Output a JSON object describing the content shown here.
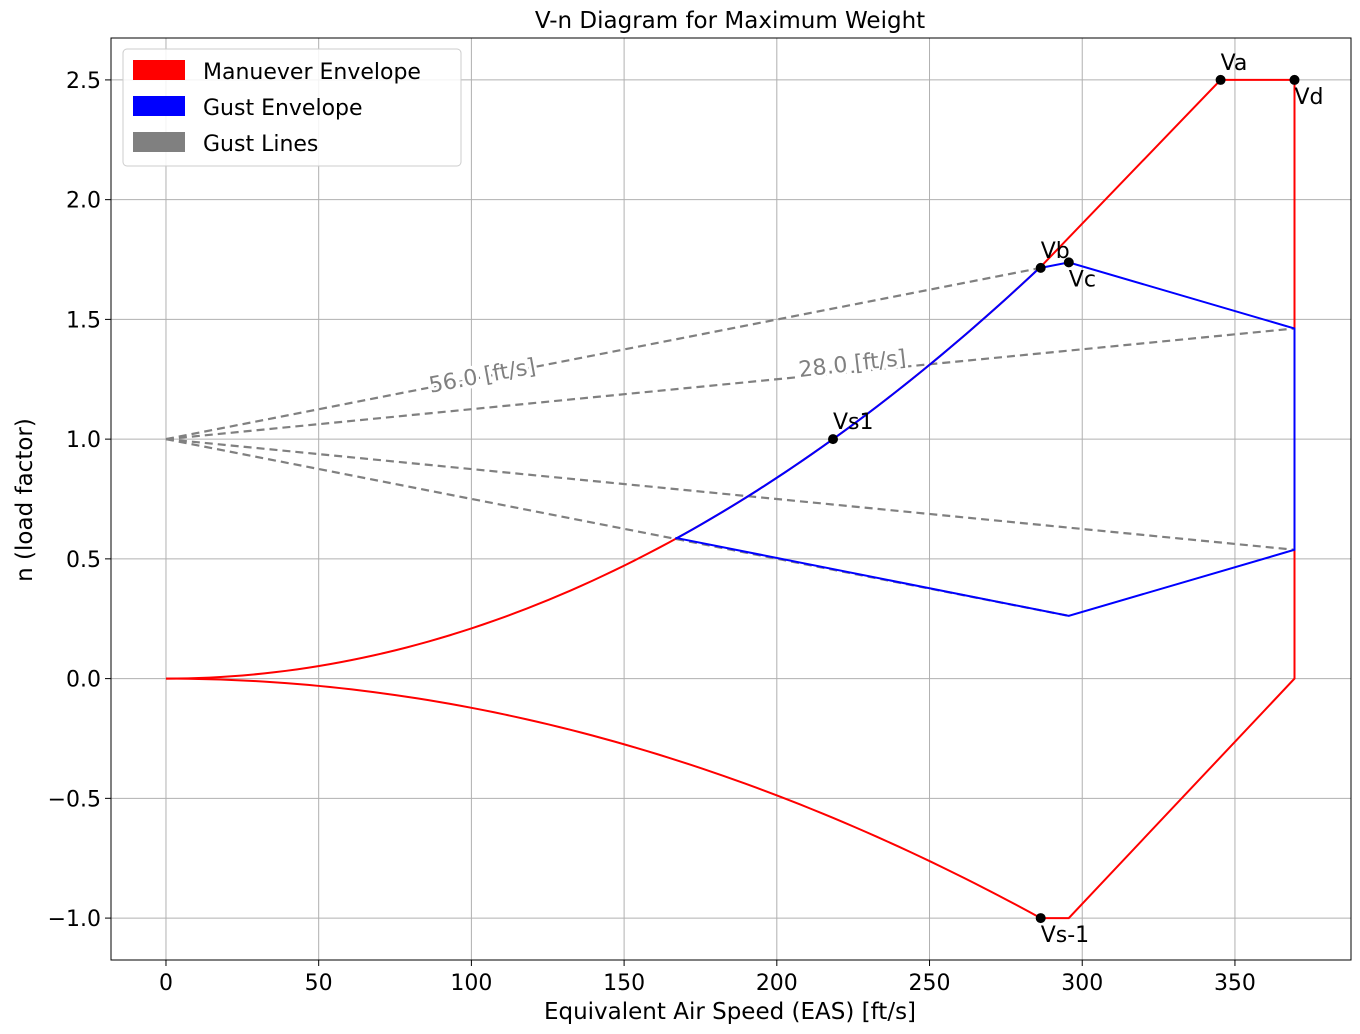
{
  "chart_data": {
    "type": "line",
    "title": "V-n Diagram for Maximum Weight",
    "xlabel": "Equivalent Air Speed (EAS) [ft/s]",
    "ylabel": "n (load factor)",
    "xlim": [
      -18,
      388
    ],
    "ylim": [
      -1.175,
      2.675
    ],
    "x_ticks": [
      0,
      50,
      100,
      150,
      200,
      250,
      300,
      350
    ],
    "x_tick_labels": [
      "0",
      "50",
      "100",
      "150",
      "200",
      "250",
      "300",
      "350"
    ],
    "y_ticks": [
      -1.0,
      -0.5,
      0.0,
      0.5,
      1.0,
      1.5,
      2.0,
      2.5
    ],
    "y_tick_labels": [
      "−1.0",
      "−0.5",
      "0.0",
      "0.5",
      "1.0",
      "1.5",
      "2.0",
      "2.5"
    ],
    "grid": true,
    "legend_position": "upper-left",
    "legend": [
      {
        "label": "Manuever Envelope",
        "color": "#ff0000"
      },
      {
        "label": "Gust Envelope",
        "color": "#0000ff"
      },
      {
        "label": "Gust Lines",
        "color": "#808080"
      }
    ],
    "maneuver_envelope": {
      "color": "#ff0000",
      "upper_curve_vs1": 218.4,
      "n_max": 2.5,
      "n_min": -1.0,
      "Va": 345.3,
      "Vd": 369.5,
      "Vs_neg": 286.4,
      "Vc": 295.6
    },
    "gust_envelope": {
      "color": "#0000ff",
      "lower_curve_start_x": 166.8,
      "points": [
        [
          286.4,
          1.715
        ],
        [
          295.6,
          1.738
        ],
        [
          369.5,
          1.462
        ],
        [
          369.5,
          0.538
        ],
        [
          295.6,
          0.262
        ],
        [
          166.8,
          0.588
        ]
      ]
    },
    "gust_lines": {
      "color": "#808080",
      "lines": [
        {
          "name": "56.0 [ft/s]",
          "from": [
            0,
            1.0
          ],
          "to": [
            286.4,
            1.715
          ]
        },
        {
          "name": "56.0 [ft/s]",
          "from": [
            0,
            1.0
          ],
          "to": [
            295.6,
            0.262
          ]
        },
        {
          "name": "28.0 [ft/s]",
          "from": [
            0,
            1.0
          ],
          "to": [
            369.5,
            1.462
          ]
        },
        {
          "name": "28.0 [ft/s]",
          "from": [
            0,
            1.0
          ],
          "to": [
            369.5,
            0.538
          ]
        }
      ],
      "labels": [
        {
          "text": "56.0 [ft/s]",
          "x": 104,
          "y": 1.235,
          "angle_deg": -10.5
        },
        {
          "text": "28.0 [ft/s]",
          "x": 225,
          "y": 1.285,
          "angle_deg": -6.5
        }
      ]
    },
    "points": [
      {
        "label": "Va",
        "x": 345.3,
        "y": 2.5,
        "pos": "above"
      },
      {
        "label": "Vd",
        "x": 369.5,
        "y": 2.5,
        "pos": "below"
      },
      {
        "label": "Vb",
        "x": 286.4,
        "y": 1.715,
        "pos": "above"
      },
      {
        "label": "Vc",
        "x": 295.6,
        "y": 1.738,
        "pos": "below"
      },
      {
        "label": "Vs1",
        "x": 218.4,
        "y": 1.0,
        "pos": "above"
      },
      {
        "label": "Vs-1",
        "x": 286.4,
        "y": -1.0,
        "pos": "below"
      }
    ]
  }
}
